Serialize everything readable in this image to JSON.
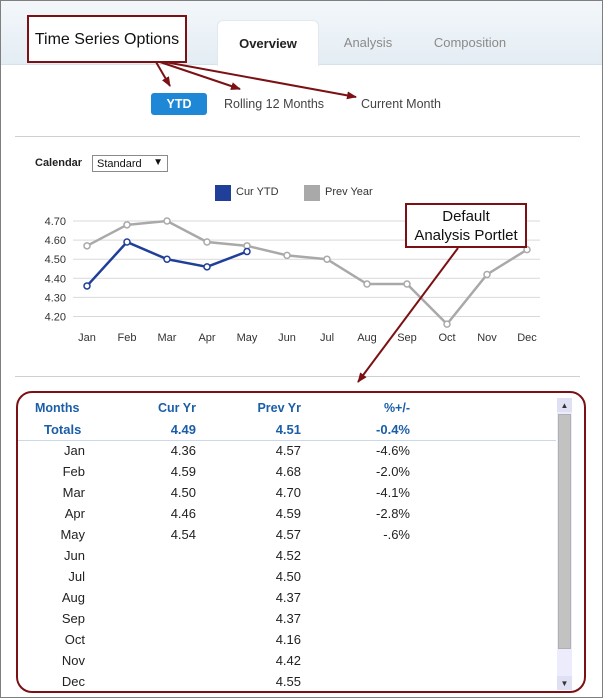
{
  "tabs": [
    {
      "label": "Overview",
      "active": true
    },
    {
      "label": "Analysis",
      "active": false
    },
    {
      "label": "Composition",
      "active": false
    }
  ],
  "annotations": {
    "time_series": "Time Series Options",
    "portlet_line1": "Default",
    "portlet_line2": "Analysis Portlet"
  },
  "time_series": {
    "options": [
      "YTD",
      "Rolling 12 Months",
      "Current Month"
    ],
    "selected": "YTD"
  },
  "calendar": {
    "label": "Calendar",
    "selected": "Standard"
  },
  "colors": {
    "cur": "#1f3f99",
    "prev": "#a9a9a9",
    "accent": "#1e88d6",
    "annotation": "#7b1114"
  },
  "chart_data": {
    "type": "line",
    "categories": [
      "Jan",
      "Feb",
      "Mar",
      "Apr",
      "May",
      "Jun",
      "Jul",
      "Aug",
      "Sep",
      "Oct",
      "Nov",
      "Dec"
    ],
    "series": [
      {
        "name": "Cur YTD",
        "values": [
          4.36,
          4.59,
          4.5,
          4.46,
          4.54,
          null,
          null,
          null,
          null,
          null,
          null,
          null
        ]
      },
      {
        "name": "Prev Year",
        "values": [
          4.57,
          4.68,
          4.7,
          4.59,
          4.57,
          4.52,
          4.5,
          4.37,
          4.37,
          4.16,
          4.42,
          4.55
        ]
      }
    ],
    "yticks": [
      "4.70",
      "4.60",
      "4.50",
      "4.40",
      "4.30",
      "4.20"
    ],
    "ylim": [
      4.15,
      4.75
    ],
    "grid": true,
    "legend": "top"
  },
  "table": {
    "columns": [
      "Months",
      "Cur Yr",
      "Prev Yr",
      "%+/-"
    ],
    "totals": [
      "Totals",
      "4.49",
      "4.51",
      "-0.4%"
    ],
    "rows": [
      [
        "Jan",
        "4.36",
        "4.57",
        "-4.6%"
      ],
      [
        "Feb",
        "4.59",
        "4.68",
        "-2.0%"
      ],
      [
        "Mar",
        "4.50",
        "4.70",
        "-4.1%"
      ],
      [
        "Apr",
        "4.46",
        "4.59",
        "-2.8%"
      ],
      [
        "May",
        "4.54",
        "4.57",
        "-.6%"
      ],
      [
        "Jun",
        "",
        "4.52",
        ""
      ],
      [
        "Jul",
        "",
        "4.50",
        ""
      ],
      [
        "Aug",
        "",
        "4.37",
        ""
      ],
      [
        "Sep",
        "",
        "4.37",
        ""
      ],
      [
        "Oct",
        "",
        "4.16",
        ""
      ],
      [
        "Nov",
        "",
        "4.42",
        ""
      ],
      [
        "Dec",
        "",
        "4.55",
        ""
      ]
    ]
  },
  "scroll": {
    "up_icon": "arrow-up-icon",
    "down_icon": "arrow-down-icon"
  }
}
